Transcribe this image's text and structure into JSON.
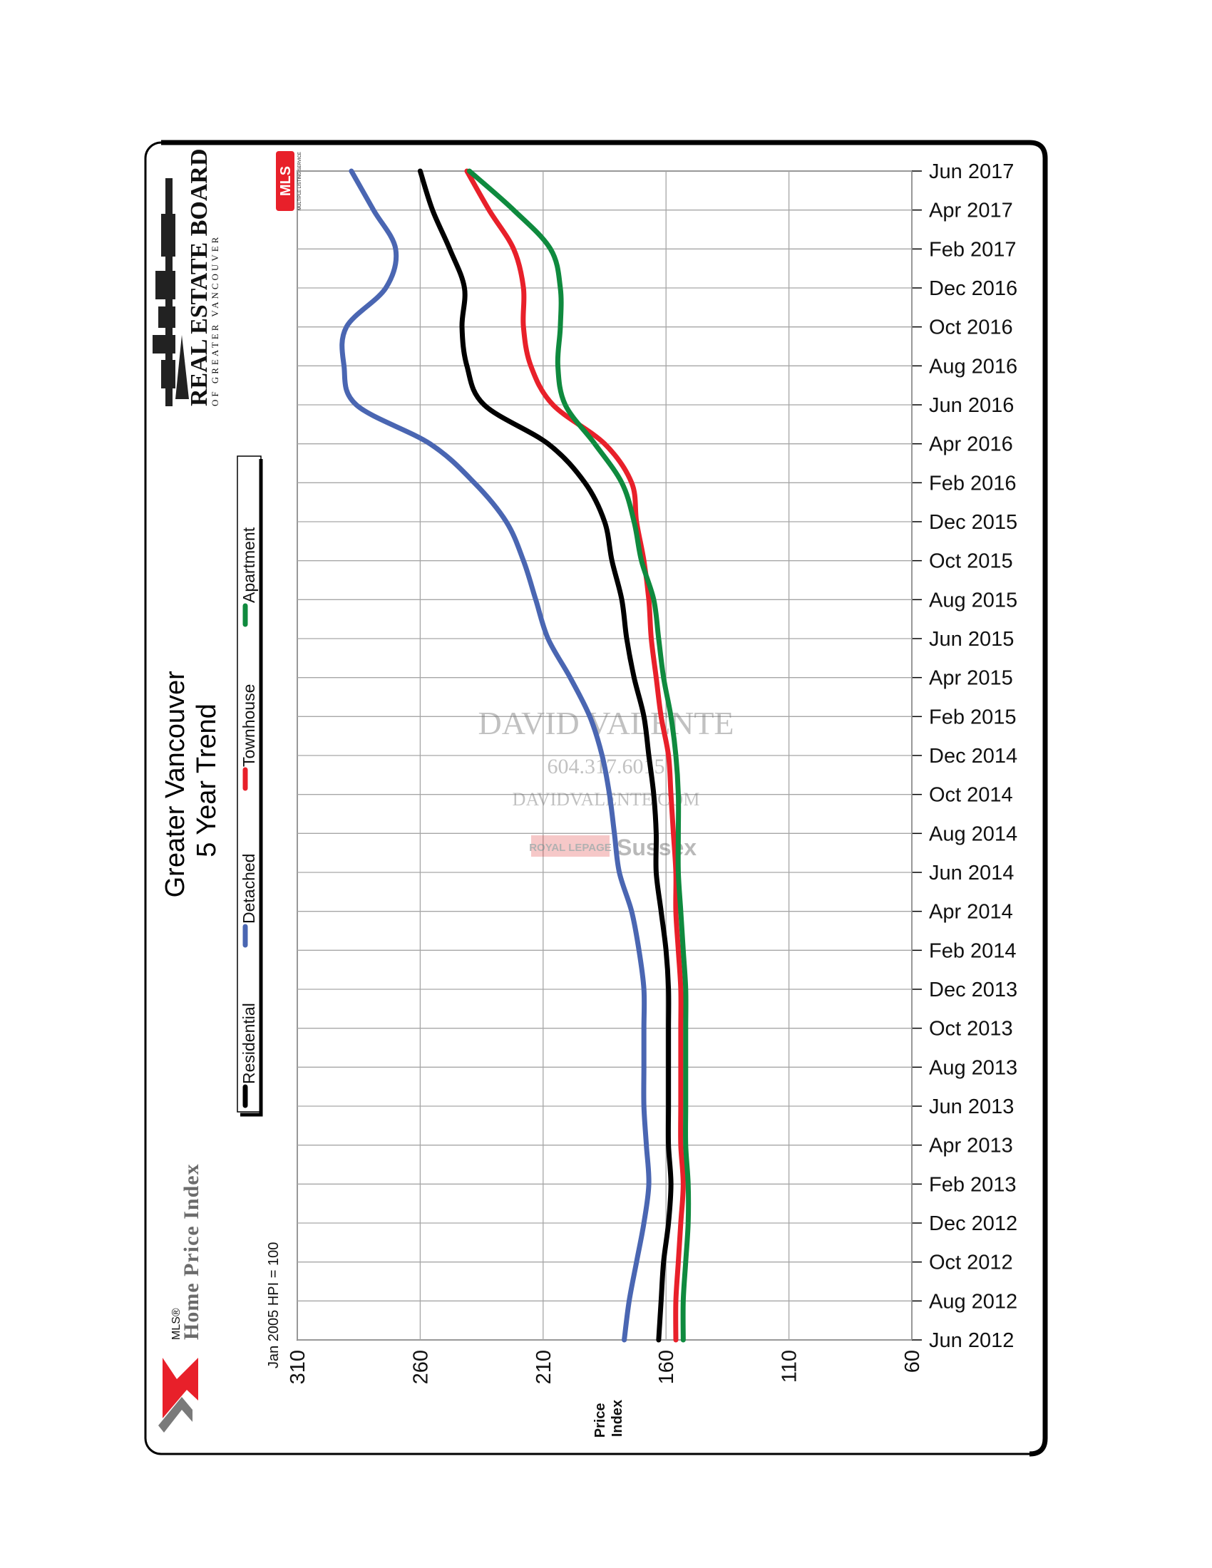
{
  "header": {
    "title_line1": "Greater Vancouver",
    "title_line2": "5 Year Trend",
    "board_name": "REAL ESTATE BOARD",
    "board_sub": "OF GREATER VANCOUVER",
    "mls_badge": "MLS",
    "mls_sub": "MULTIPLE LISTING SERVICE",
    "hpi_logo_small": "MLS®",
    "hpi_logo_text": "Home Price Index",
    "baseline_note": "Jan 2005 HPI = 100"
  },
  "watermark": {
    "name": "DAVID VALENTE",
    "phone": "604.317.6015",
    "site": "DAVIDVALENTE.COM",
    "brokerage_left": "ROYAL LEPAGE",
    "brokerage_right": "Sussex"
  },
  "colors": {
    "Residential": "#000000",
    "Detached": "#4a66b2",
    "Townhouse": "#e8202a",
    "Apartment": "#0f8a3e",
    "grid": "#a6a6a6"
  },
  "chart_data": {
    "type": "line",
    "orientation": "rotated 90° clockwise (time runs bottom to top, price decreases left to right)",
    "ylabel": "Price Index",
    "yticks": [
      310,
      260,
      210,
      160,
      110,
      60
    ],
    "ylim": [
      60,
      310
    ],
    "xlim": [
      "Jun 2012",
      "Jun 2017"
    ],
    "x_tick_labels": [
      "Jun 2012",
      "Aug 2012",
      "Oct 2012",
      "Dec 2012",
      "Feb 2013",
      "Apr 2013",
      "Jun 2013",
      "Aug 2013",
      "Oct 2013",
      "Dec 2013",
      "Feb 2014",
      "Apr 2014",
      "Jun 2014",
      "Aug 2014",
      "Oct 2014",
      "Dec 2014",
      "Feb 2015",
      "Apr 2015",
      "Jun 2015",
      "Aug 2015",
      "Oct 2015",
      "Dec 2015",
      "Feb 2016",
      "Apr 2016",
      "Jun 2016",
      "Aug 2016",
      "Oct 2016",
      "Dec 2016",
      "Feb 2017",
      "Apr 2017",
      "Jun 2017"
    ],
    "legend_position": "left side, vertical",
    "grid": true,
    "x": [
      "Jun 2012",
      "Aug 2012",
      "Oct 2012",
      "Dec 2012",
      "Feb 2013",
      "Apr 2013",
      "Jun 2013",
      "Aug 2013",
      "Oct 2013",
      "Dec 2013",
      "Feb 2014",
      "Apr 2014",
      "Jun 2014",
      "Aug 2014",
      "Oct 2014",
      "Dec 2014",
      "Feb 2015",
      "Apr 2015",
      "Jun 2015",
      "Aug 2015",
      "Oct 2015",
      "Dec 2015",
      "Feb 2016",
      "Apr 2016",
      "Jun 2016",
      "Aug 2016",
      "Oct 2016",
      "Dec 2016",
      "Feb 2017",
      "Apr 2017",
      "Jun 2017"
    ],
    "series": [
      {
        "name": "Residential",
        "values": [
          163,
          162,
          161,
          159,
          158,
          159,
          159,
          159,
          159,
          159,
          160,
          162,
          164,
          164,
          165,
          167,
          169,
          173,
          176,
          178,
          182,
          185,
          193,
          208,
          234,
          241,
          243,
          242,
          248,
          255,
          260
        ]
      },
      {
        "name": "Detached",
        "values": [
          177,
          175,
          172,
          169,
          167,
          168,
          169,
          169,
          169,
          169,
          171,
          174,
          179,
          181,
          183,
          186,
          191,
          199,
          208,
          213,
          218,
          225,
          238,
          256,
          286,
          291,
          290,
          274,
          270,
          279,
          288
        ]
      },
      {
        "name": "Townhouse",
        "values": [
          156,
          156,
          155,
          154,
          153,
          154,
          154,
          154,
          154,
          154,
          155,
          156,
          156,
          157,
          158,
          159,
          162,
          164,
          166,
          167,
          169,
          172,
          174,
          185,
          206,
          215,
          218,
          218,
          222,
          232,
          241
        ]
      },
      {
        "name": "Apartment",
        "values": [
          153,
          153,
          152,
          151,
          151,
          152,
          152,
          152,
          152,
          152,
          153,
          154,
          155,
          155,
          155,
          156,
          158,
          161,
          163,
          165,
          170,
          173,
          178,
          189,
          201,
          204,
          203,
          203,
          207,
          222,
          240
        ]
      }
    ]
  }
}
